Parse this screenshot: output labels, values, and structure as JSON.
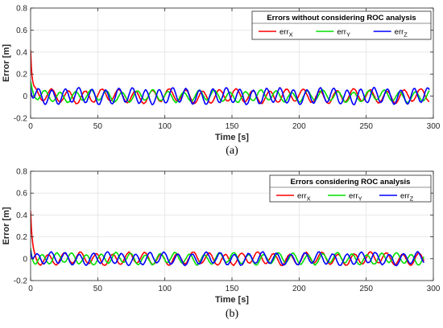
{
  "chart_data": [
    {
      "type": "line",
      "panel_label": "(a)",
      "xlabel": "Time [s]",
      "ylabel": "Error [m]",
      "xlim": [
        0,
        300
      ],
      "ylim": [
        -0.2,
        0.8
      ],
      "xticks": [
        "0",
        "50",
        "100",
        "150",
        "200",
        "250",
        "300"
      ],
      "yticks": [
        "-0.2",
        "0",
        "0.2",
        "0.4",
        "0.6",
        "0.8"
      ],
      "grid": true,
      "legend": {
        "title": "Errors without considering ROC analysis",
        "placement": "top-right",
        "entries": [
          {
            "name": "err",
            "sub": "X",
            "color": "#ff0000"
          },
          {
            "name": "err",
            "sub": "Y",
            "color": "#00e000"
          },
          {
            "name": "err",
            "sub": "Z",
            "color": "#0000ff"
          }
        ]
      },
      "x_end": 297,
      "series": [
        {
          "name": "err_X",
          "color": "#ff0000",
          "initial": 0.42,
          "amplitude": 0.055,
          "period": 12.5,
          "phase": 0.0
        },
        {
          "name": "err_Y",
          "color": "#00e000",
          "initial": 0.12,
          "amplitude": 0.045,
          "period": 11.5,
          "phase": 2.1
        },
        {
          "name": "err_Z",
          "color": "#0000ff",
          "initial": 0.1,
          "amplitude": 0.065,
          "period": 10.0,
          "phase": 4.2
        }
      ]
    },
    {
      "type": "line",
      "panel_label": "(b)",
      "xlabel": "Time [s]",
      "ylabel": "Error [m]",
      "xlim": [
        0,
        300
      ],
      "ylim": [
        -0.2,
        0.8
      ],
      "xticks": [
        "0",
        "50",
        "100",
        "150",
        "200",
        "250",
        "300"
      ],
      "yticks": [
        "-0.2",
        "0",
        "0.2",
        "0.4",
        "0.6",
        "0.8"
      ],
      "grid": true,
      "legend": {
        "title": "Errors considering ROC analysis",
        "placement": "top-right",
        "entries": [
          {
            "name": "err",
            "sub": "X",
            "color": "#ff0000"
          },
          {
            "name": "err",
            "sub": "Y",
            "color": "#00e000"
          },
          {
            "name": "err",
            "sub": "Z",
            "color": "#0000ff"
          }
        ]
      },
      "x_end": 293,
      "series": [
        {
          "name": "err_X",
          "color": "#ff0000",
          "initial": 0.42,
          "amplitude": 0.05,
          "period": 12.0,
          "phase": 1.0
        },
        {
          "name": "err_Y",
          "color": "#00e000",
          "initial": 0.1,
          "amplitude": 0.045,
          "period": 11.0,
          "phase": 3.0
        },
        {
          "name": "err_Z",
          "color": "#0000ff",
          "initial": 0.1,
          "amplitude": 0.05,
          "period": 10.5,
          "phase": 5.0
        }
      ]
    }
  ]
}
